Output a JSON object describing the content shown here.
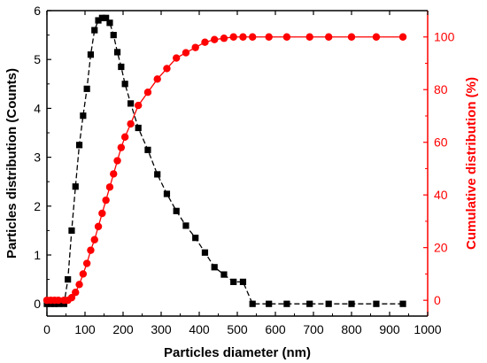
{
  "chart_data": {
    "type": "line",
    "xlabel": "Particles diameter (nm)",
    "ylabel": "Particles distribution (Counts)",
    "y2label": "Cumulative distribution (%)",
    "xlim": [
      0,
      1000
    ],
    "ylim": [
      -0.25,
      6
    ],
    "y2lim": [
      -6,
      110
    ],
    "xticks": [
      "0",
      "100",
      "200",
      "300",
      "400",
      "500",
      "600",
      "700",
      "800",
      "900",
      "1000"
    ],
    "yticks": [
      "0",
      "1",
      "2",
      "3",
      "4",
      "5",
      "6"
    ],
    "y2ticks": [
      "0",
      "20",
      "40",
      "60",
      "80",
      "100"
    ],
    "grid": false,
    "colors": {
      "counts": "#000000",
      "cumulative": "#ff0000"
    },
    "series": [
      {
        "axis": "left",
        "marker": "square",
        "x": [
          0,
          10,
          20,
          30,
          45,
          55,
          65,
          75,
          85,
          95,
          105,
          115,
          125,
          135,
          145,
          155,
          165,
          175,
          185,
          195,
          205,
          220,
          240,
          265,
          290,
          315,
          340,
          365,
          390,
          415,
          440,
          465,
          490,
          515,
          540,
          583,
          630,
          690,
          740,
          800,
          865,
          935
        ],
        "values": [
          0,
          0,
          0,
          0,
          0,
          0.5,
          1.5,
          2.4,
          3.25,
          3.85,
          4.4,
          5.1,
          5.6,
          5.8,
          5.85,
          5.85,
          5.75,
          5.5,
          5.15,
          4.85,
          4.5,
          4.1,
          3.6,
          3.15,
          2.65,
          2.25,
          1.9,
          1.6,
          1.35,
          1.05,
          0.75,
          0.6,
          0.45,
          0.45,
          0,
          0,
          0,
          0,
          0,
          0,
          0,
          0
        ]
      },
      {
        "axis": "right",
        "marker": "circle",
        "x": [
          0,
          10,
          20,
          30,
          45,
          55,
          65,
          75,
          85,
          95,
          105,
          115,
          125,
          135,
          145,
          155,
          165,
          175,
          185,
          195,
          205,
          220,
          240,
          265,
          290,
          315,
          340,
          365,
          390,
          415,
          440,
          465,
          490,
          515,
          540,
          583,
          630,
          690,
          740,
          800,
          865,
          935
        ],
        "values": [
          0,
          0,
          0,
          0,
          0,
          0,
          1,
          3,
          6,
          10,
          14,
          19,
          23,
          28,
          33,
          38,
          43,
          48,
          53,
          58,
          62,
          67,
          74,
          79,
          84,
          88,
          92,
          94,
          96,
          98,
          99,
          99.5,
          100,
          100,
          100,
          100,
          100,
          100,
          100,
          100,
          100,
          100
        ]
      }
    ]
  }
}
